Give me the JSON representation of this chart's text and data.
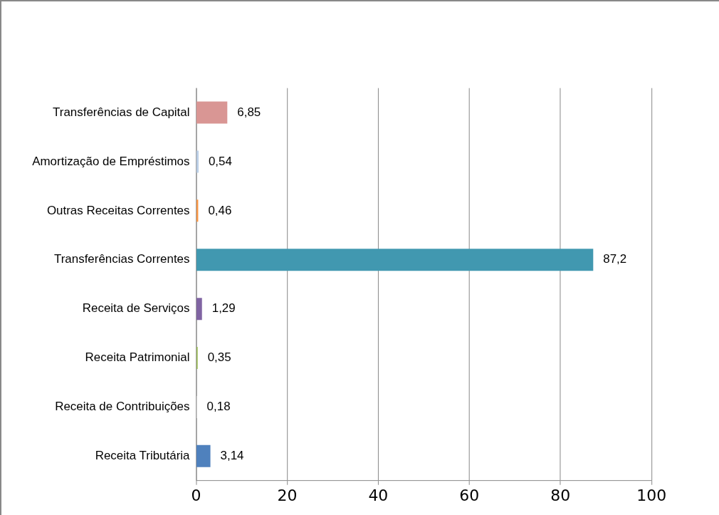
{
  "chart_data": {
    "type": "bar",
    "orientation": "horizontal",
    "categories": [
      "Transferências de Capital",
      "Amortização de Empréstimos",
      "Outras Receitas Correntes",
      "Transferências Correntes",
      "Receita de Serviços",
      "Receita Patrimonial",
      "Receita de Contribuições",
      "Receita Tributária"
    ],
    "values": [
      6.85,
      0.54,
      0.46,
      87.2,
      1.29,
      0.35,
      0.18,
      3.14
    ],
    "value_labels": [
      "6,85",
      "0,54",
      "0,46",
      "87,2",
      "1,29",
      "0,35",
      "0,18",
      "3,14"
    ],
    "colors": [
      "#d99694",
      "#b9cde5",
      "#f79646",
      "#4198b0",
      "#8064a2",
      "#9bbb59",
      "#e6e6e6",
      "#4f81bd"
    ],
    "xlim": [
      0,
      100
    ],
    "xticks": [
      0,
      20,
      40,
      60,
      80,
      100
    ],
    "grid": "x",
    "legend": false
  }
}
